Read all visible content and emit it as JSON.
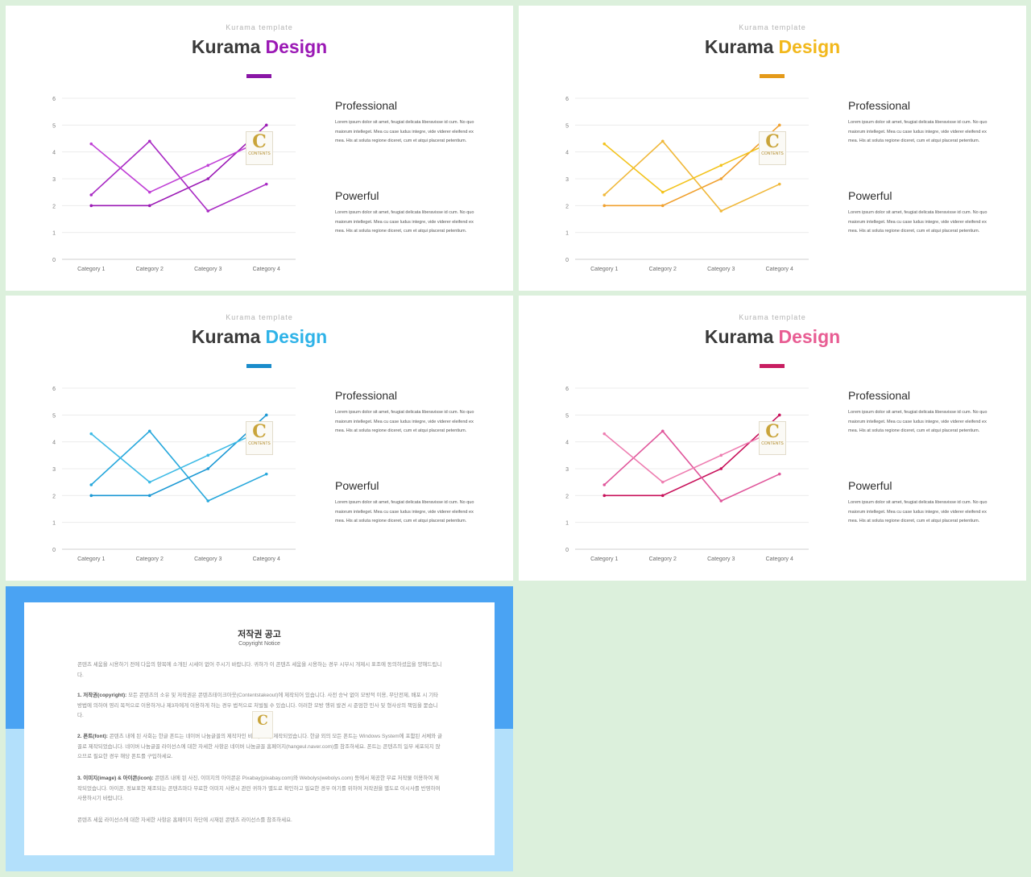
{
  "slides": [
    {
      "subtitle": "Kurama template",
      "title_main": "Kurama",
      "title_accent": "Design",
      "accent_color": "#9b19b5",
      "bar_color": "#8a16a6",
      "series_colors": [
        "#9b19b5",
        "#a92bc4",
        "#c040d6"
      ],
      "logo": {
        "letter": "C",
        "word": "CONTENTS",
        "tagline": ""
      },
      "sections": [
        {
          "heading": "Professional",
          "body": "Lorem ipsum dolor sit amet, feugiat delicata liberavisse id cum. No quo maiorum intelleget. Mea cu case ludus integre, vide viderer eleifend ex mea. His at soluta regione diceret, cum et atqui placerat petentium."
        },
        {
          "heading": "Powerful",
          "body": "Lorem ipsum dolor sit amet, feugiat delicata liberavisse id cum. No quo maiorum intelleget. Mea cu case ludus integre, vide viderer eleifend ex mea. His at soluta regione diceret, cum et atqui placerat petentium."
        }
      ]
    },
    {
      "subtitle": "Kurama template",
      "title_main": "Kurama",
      "title_accent": "Design",
      "accent_color": "#f2b81c",
      "bar_color": "#e49a1a",
      "series_colors": [
        "#f0a02e",
        "#f0b83a",
        "#f3c31c"
      ],
      "logo": {
        "letter": "C",
        "word": "CONTENTS",
        "tagline": ""
      },
      "sections": [
        {
          "heading": "Professional",
          "body": "Lorem ipsum dolor sit amet, feugiat delicata liberavisse id cum. No quo maiorum intelleget. Mea cu case ludus integre, vide viderer eleifend ex mea. His at soluta regione diceret, cum et atqui placerat petentium."
        },
        {
          "heading": "Powerful",
          "body": "Lorem ipsum dolor sit amet, feugiat delicata liberavisse id cum. No quo maiorum intelleget. Mea cu case ludus integre, vide viderer eleifend ex mea. His at soluta regione diceret, cum et atqui placerat petentium."
        }
      ]
    },
    {
      "subtitle": "Kurama template",
      "title_main": "Kurama",
      "title_accent": "Design",
      "accent_color": "#2fb3e8",
      "bar_color": "#1a8ccb",
      "series_colors": [
        "#1b98d4",
        "#28a8dc",
        "#3fbbe6"
      ],
      "logo": {
        "letter": "C",
        "word": "CONTENTS",
        "tagline": ""
      },
      "sections": [
        {
          "heading": "Professional",
          "body": "Lorem ipsum dolor sit amet, feugiat delicata liberavisse id cum. No quo maiorum intelleget. Mea cu case ludus integre, vide viderer eleifend ex mea. His at soluta regione diceret, cum et atqui placerat petentium."
        },
        {
          "heading": "Powerful",
          "body": "Lorem ipsum dolor sit amet, feugiat delicata liberavisse id cum. No quo maiorum intelleget. Mea cu case ludus integre, vide viderer eleifend ex mea. His at soluta regione diceret, cum et atqui placerat petentium."
        }
      ]
    },
    {
      "subtitle": "Kurama template",
      "title_main": "Kurama",
      "title_accent": "Design",
      "accent_color": "#e85d93",
      "bar_color": "#c81e61",
      "series_colors": [
        "#c8105a",
        "#e0569b",
        "#ee7eb1"
      ],
      "logo": {
        "letter": "C",
        "word": "CONTENTS",
        "tagline": ""
      },
      "sections": [
        {
          "heading": "Professional",
          "body": "Lorem ipsum dolor sit amet, feugiat delicata liberavisse id cum. No quo maiorum intelleget. Mea cu case ludus integre, vide viderer eleifend ex mea. His at soluta regione diceret, cum et atqui placerat petentium."
        },
        {
          "heading": "Powerful",
          "body": "Lorem ipsum dolor sit amet, feugiat delicata liberavisse id cum. No quo maiorum intelleget. Mea cu case ludus integre, vide viderer eleifend ex mea. His at soluta regione diceret, cum et atqui placerat petentium."
        }
      ]
    }
  ],
  "chart_data": [
    {
      "type": "line",
      "categories": [
        "Category 1",
        "Category 2",
        "Category 3",
        "Category 4"
      ],
      "ylim": [
        0,
        6
      ],
      "yticks": [
        "0",
        "1",
        "2",
        "3",
        "4",
        "5",
        "6"
      ],
      "series": [
        {
          "values": [
            2.0,
            2.0,
            3.0,
            5.0
          ]
        },
        {
          "values": [
            2.4,
            4.4,
            1.8,
            2.8
          ]
        },
        {
          "values": [
            4.3,
            2.5,
            3.5,
            4.5
          ]
        }
      ],
      "grid": true,
      "legend": "none"
    },
    {
      "type": "line",
      "categories": [
        "Category 1",
        "Category 2",
        "Category 3",
        "Category 4"
      ],
      "ylim": [
        0,
        6
      ],
      "yticks": [
        "0",
        "1",
        "2",
        "3",
        "4",
        "5",
        "6"
      ],
      "series": [
        {
          "values": [
            2.0,
            2.0,
            3.0,
            5.0
          ]
        },
        {
          "values": [
            2.4,
            4.4,
            1.8,
            2.8
          ]
        },
        {
          "values": [
            4.3,
            2.5,
            3.5,
            4.5
          ]
        }
      ],
      "grid": true,
      "legend": "none"
    },
    {
      "type": "line",
      "categories": [
        "Category 1",
        "Category 2",
        "Category 3",
        "Category 4"
      ],
      "ylim": [
        0,
        6
      ],
      "yticks": [
        "0",
        "1",
        "2",
        "3",
        "4",
        "5",
        "6"
      ],
      "series": [
        {
          "values": [
            2.0,
            2.0,
            3.0,
            5.0
          ]
        },
        {
          "values": [
            2.4,
            4.4,
            1.8,
            2.8
          ]
        },
        {
          "values": [
            4.3,
            2.5,
            3.5,
            4.5
          ]
        }
      ],
      "grid": true,
      "legend": "none"
    },
    {
      "type": "line",
      "categories": [
        "Category 1",
        "Category 2",
        "Category 3",
        "Category 4"
      ],
      "ylim": [
        0,
        6
      ],
      "yticks": [
        "0",
        "1",
        "2",
        "3",
        "4",
        "5",
        "6"
      ],
      "series": [
        {
          "values": [
            2.0,
            2.0,
            3.0,
            5.0
          ]
        },
        {
          "values": [
            2.4,
            4.4,
            1.8,
            2.8
          ]
        },
        {
          "values": [
            4.3,
            2.5,
            3.5,
            4.5
          ]
        }
      ],
      "grid": true,
      "legend": "none"
    }
  ],
  "notice": {
    "title": "저작권 공고",
    "subtitle": "Copyright Notice",
    "intro": "콘텐츠 세움을 시용하기 전에 다음의 항목에 소개된 시세이 없어 주시기 바랍니다. 귀하가 이 콘텐츠 세움을 시용하는 경우 시부시 개제시 표조에 동의하셨음을 양해드립니다.",
    "items": [
      {
        "label": "1. 저작권(copyright):",
        "text": "모든 콘텐츠의 소유 및 저작권은 콘텐츠테이크아웃(Contentstakeout)에 제작되어 있습니다. 사전 승낙 없이 모방적 이용, 무단전제, 배포 시 기타 방법에 의하여 영리 목적으로 이용하거나 제3자에게 이용하게 하는 경우 법적으로 처벌될 수 있습니다. 이러한 모방 행위 발견 시 준엄한 민사 및 형사상의 책임을 묻습니다."
      },
      {
        "label": "2. 폰트(font):",
        "text": "콘텐츠 내에 된 사회는 한글 폰트는 네이버 나눔글꼴의 제작자인 비카(Noto) 제작되었습니다. 한글 외의 모든 폰트는 Windows System에 포함된 서체와 글꼴로 제작되었습니다. 네이버 나눔글꼴 라이선스에 대한 자세한 사항은 네이버 나눔글꼴 홈페이지(hangeul.naver.com)를 참조하세요. 폰트는 콘텐츠의 일부 세포되지 않으므로 필요한 경우 해당 폰트를 구입하세요."
      },
      {
        "label": "3. 이미지(image) & 아이콘(icon):",
        "text": "콘텐츠 내에 된 사진, 이미지의 아이콘은 Pixabay(pixabay.com)와 Webolys(webolys.com) 등에서 제공한 무료 저작물 이용하여 제작되었습니다. 아이콘, 정보표현 제조되는 콘텐츠마다 무료한 이미지 사용시 관련 귀하가 별도로 확인하고 필요한 경우 여기를 위하여 저작권을 별도로 이시사를 반영하여 사용하시기 바랍니다."
      }
    ],
    "closing": "콘텐츠 세움 라이선스에 대한 자세한 사항은 홈페이지 하단에 시재된 콘텐츠 라이선스를 참조하세요."
  }
}
